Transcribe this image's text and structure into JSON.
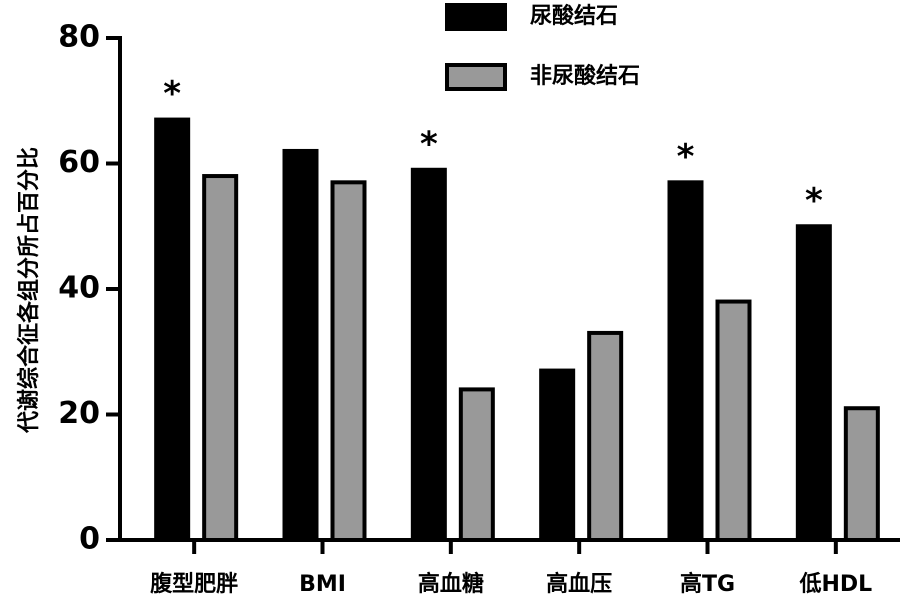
{
  "chart_data": {
    "type": "bar",
    "ylabel": "代谢综合征各组分所占百分比",
    "categories": [
      "腹型肥胖",
      "BMI",
      "高血糖",
      "高血压",
      "高TG",
      "低HDL"
    ],
    "series": [
      {
        "name": "尿酸结石",
        "color": "#000000",
        "values": [
          67,
          62,
          59,
          27,
          57,
          50
        ]
      },
      {
        "name": "非尿酸结石",
        "color": "#999999",
        "values": [
          58,
          57,
          24,
          33,
          38,
          21
        ]
      }
    ],
    "significance": [
      "*",
      null,
      "*",
      null,
      "*",
      "*"
    ],
    "ylim": [
      0,
      80
    ],
    "yticks": [
      0,
      20,
      40,
      60,
      80
    ],
    "grid": false,
    "legend": "top"
  }
}
